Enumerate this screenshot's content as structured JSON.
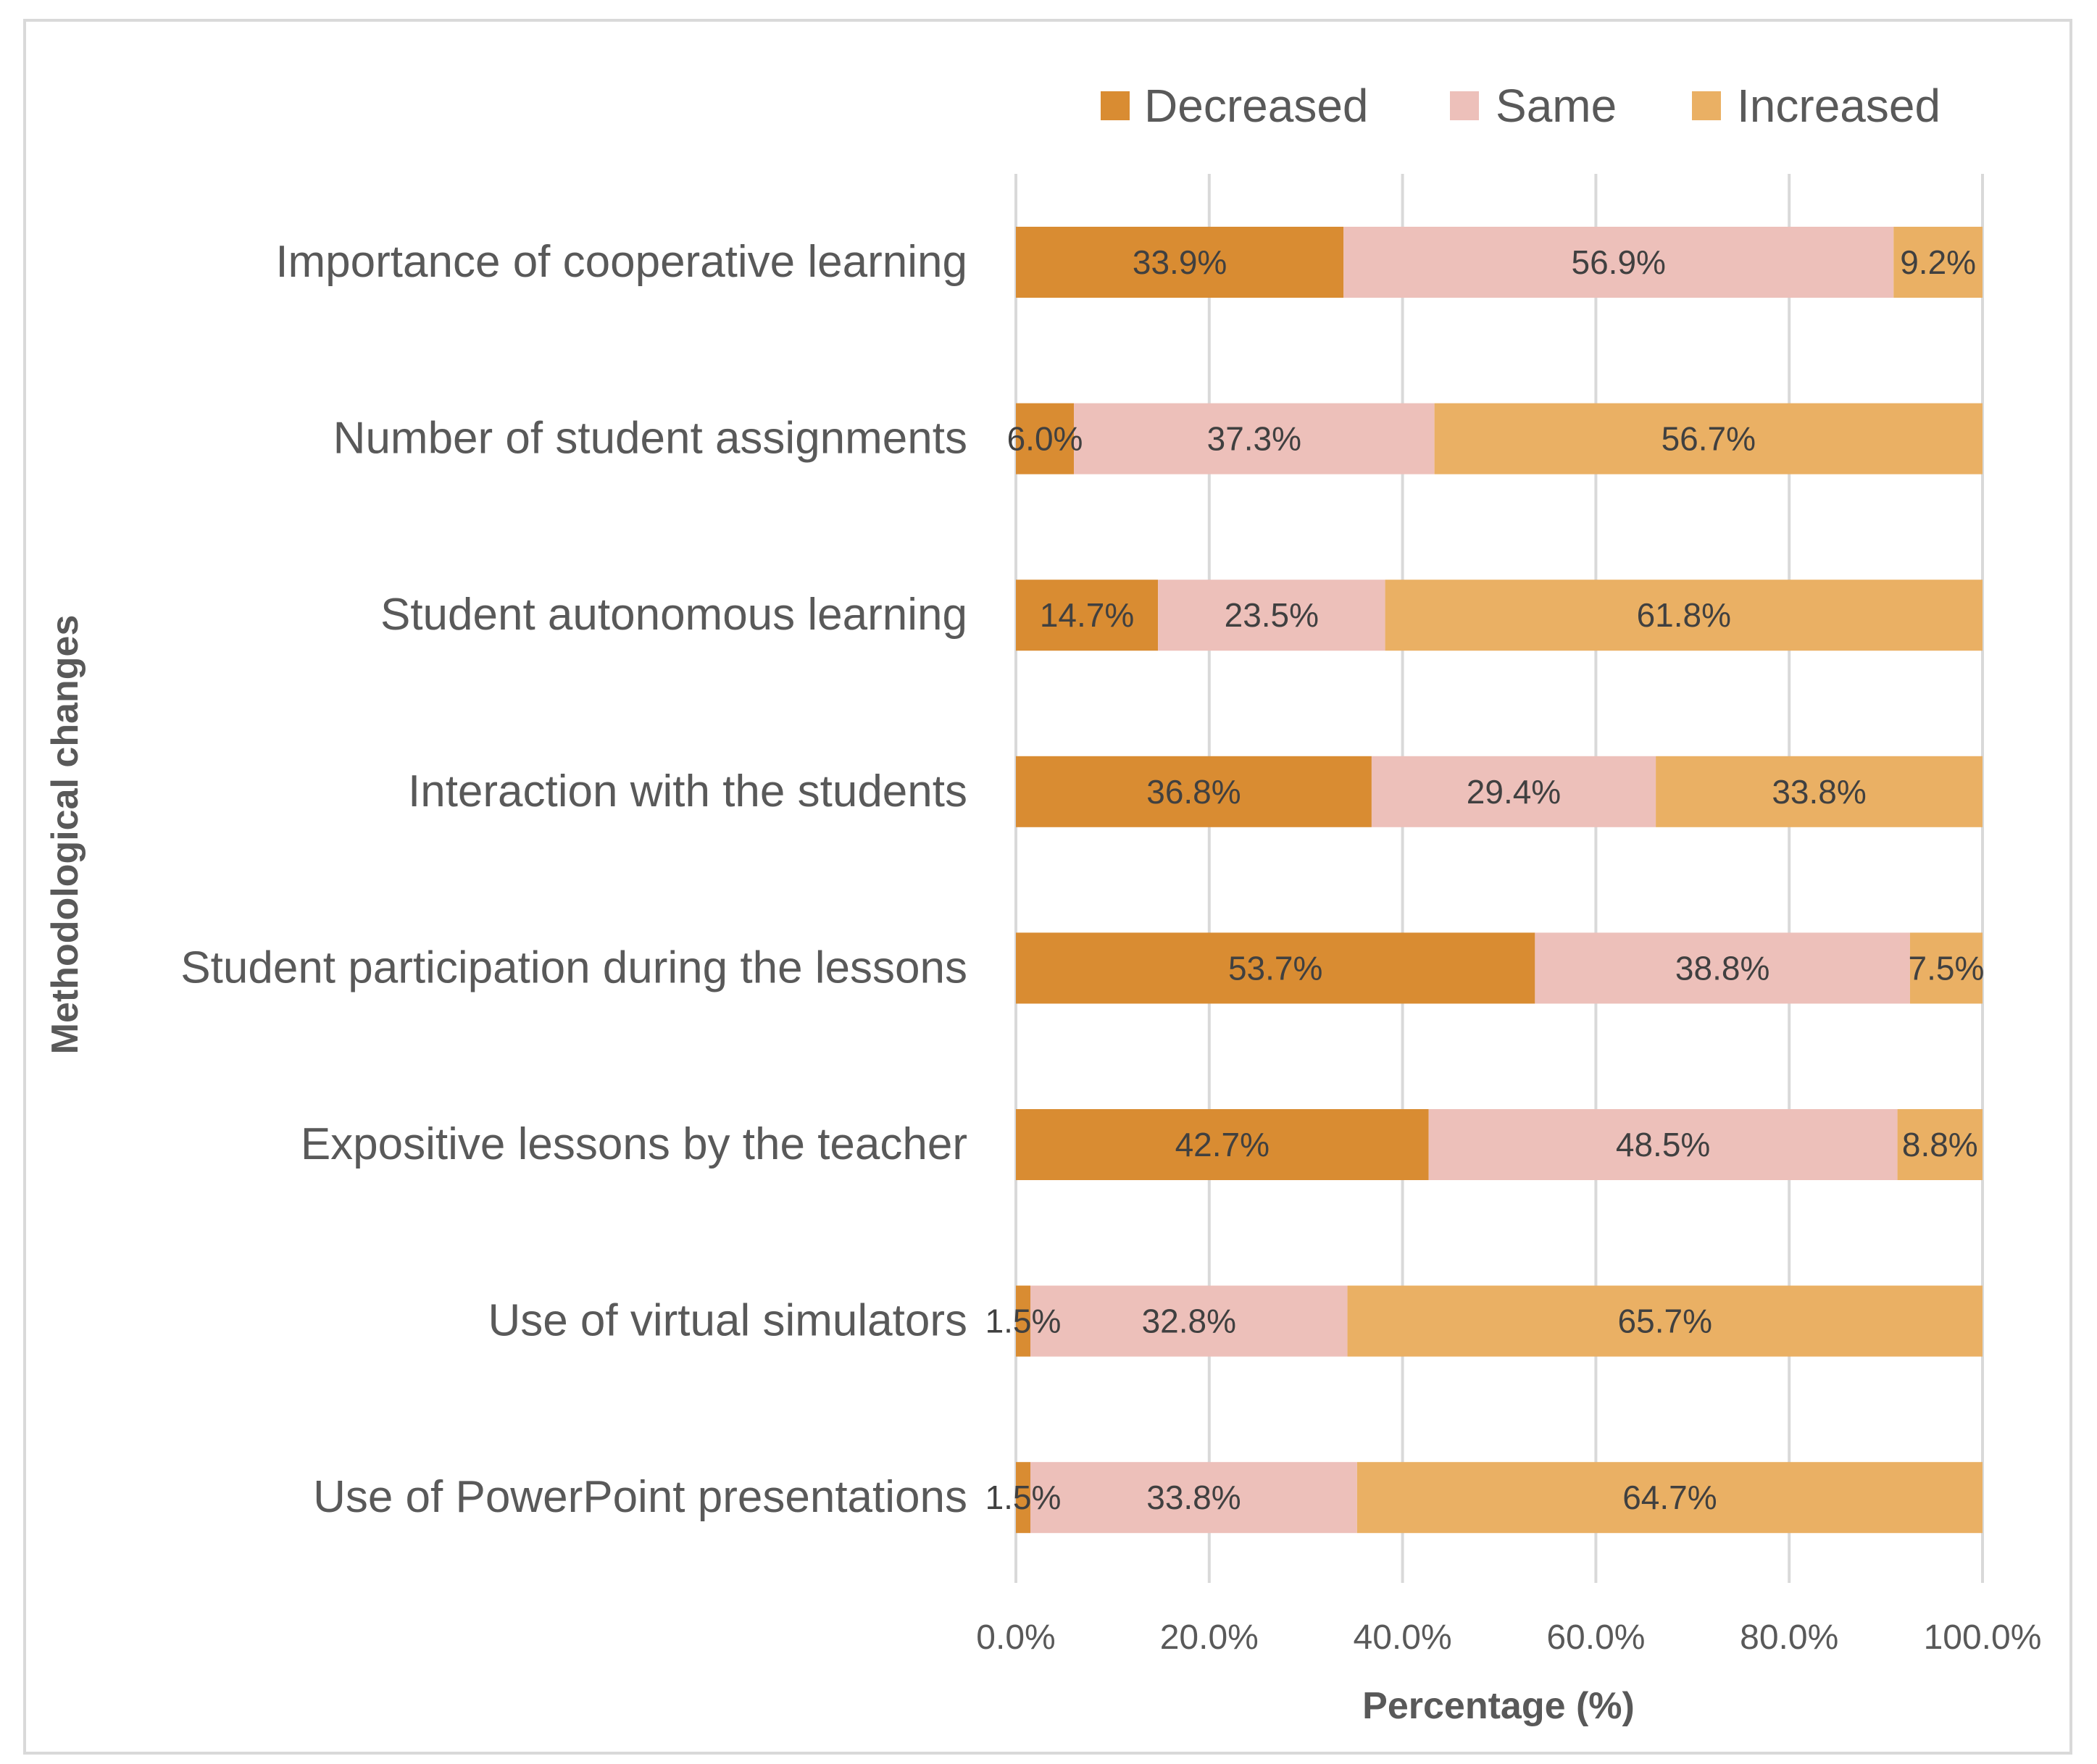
{
  "chart_data": {
    "type": "bar",
    "orientation": "horizontal",
    "stacked": true,
    "categories": [
      "Importance of cooperative learning",
      "Number of student assignments",
      "Student autonomous learning",
      "Interaction with the students",
      "Student participation during the lessons",
      "Expositive lessons by the teacher",
      "Use of virtual simulators",
      "Use of PowerPoint presentations"
    ],
    "series": [
      {
        "name": "Decreased",
        "color": "#D98C32",
        "values": [
          33.9,
          6.0,
          14.7,
          36.8,
          53.7,
          42.7,
          1.5,
          1.5
        ],
        "labels": [
          "33.9%",
          "6.0%",
          "14.7%",
          "36.8%",
          "53.7%",
          "42.7%",
          "1.5%",
          "1.5%"
        ]
      },
      {
        "name": "Same",
        "color": "#EDC0BA",
        "values": [
          56.9,
          37.3,
          23.5,
          29.4,
          38.8,
          48.5,
          32.8,
          33.8
        ],
        "labels": [
          "56.9%",
          "37.3%",
          "23.5%",
          "29.4%",
          "38.8%",
          "48.5%",
          "32.8%",
          "33.8%"
        ]
      },
      {
        "name": "Increased",
        "color": "#EAB064",
        "values": [
          9.2,
          56.7,
          61.8,
          33.8,
          7.5,
          8.8,
          65.7,
          64.7
        ],
        "labels": [
          "9.2%",
          "56.7%",
          "61.8%",
          "33.8%",
          "7.5%",
          "8.8%",
          "65.7%",
          "64.7%"
        ]
      }
    ],
    "xlabel": "Percentage (%)",
    "ylabel": "Methodological changes",
    "xlim": [
      0,
      100
    ],
    "xticks": [
      0,
      20,
      40,
      60,
      80,
      100
    ],
    "xtick_labels": [
      "0.0%",
      "20.0%",
      "40.0%",
      "60.0%",
      "80.0%",
      "100.0%"
    ],
    "grid": true,
    "legend_position": "top-right",
    "gridline_color": "#d9d9d9"
  }
}
